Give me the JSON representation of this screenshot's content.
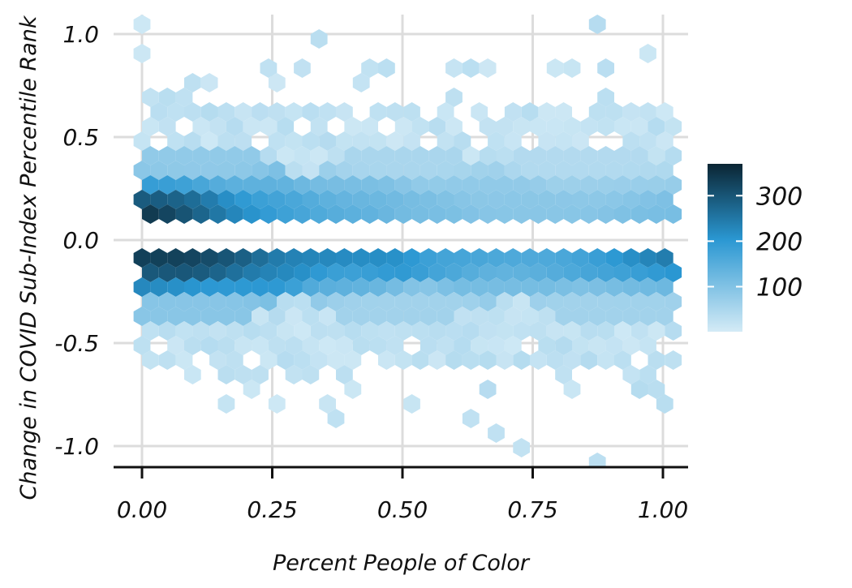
{
  "chart_data": {
    "type": "hexbin",
    "title": "",
    "xlabel": "Percent People of Color",
    "ylabel": "Change in COVID Sub-Index Percentile Rank",
    "xlim": [
      -0.05,
      1.05
    ],
    "ylim": [
      -1.1,
      1.1
    ],
    "x_ticks": [
      0.0,
      0.25,
      0.5,
      0.75,
      1.0
    ],
    "x_tick_labels": [
      "0.00",
      "0.25",
      "0.50",
      "0.75",
      "1.00"
    ],
    "y_ticks": [
      1.0,
      0.5,
      0.0,
      -0.5,
      -1.0
    ],
    "y_tick_labels": [
      "1.0",
      "0.5",
      "0.0",
      "-0.5",
      "-1.0"
    ],
    "grid": true,
    "legend": {
      "position": "right",
      "count_range": [
        1,
        370
      ],
      "ticks": [
        100,
        200,
        300
      ],
      "tick_labels": [
        "100",
        "200",
        "300"
      ]
    },
    "colors": {
      "low": "#d4ebf6",
      "mid": "#2a97d2",
      "high": "#0b2533",
      "grid": "#dcdcdc",
      "axis": "#111111"
    },
    "bins": [
      {
        "x": 0.045,
        "y": 0.16,
        "count": 370
      },
      {
        "x": 0.09,
        "y": 0.16,
        "count": 300
      },
      {
        "x": 0.14,
        "y": 0.16,
        "count": 230
      },
      {
        "x": 0.2,
        "y": 0.16,
        "count": 200
      },
      {
        "x": 0.3,
        "y": 0.16,
        "count": 170
      },
      {
        "x": 0.4,
        "y": 0.16,
        "count": 140
      },
      {
        "x": 0.55,
        "y": 0.16,
        "count": 110
      },
      {
        "x": 0.7,
        "y": 0.16,
        "count": 90
      },
      {
        "x": 0.85,
        "y": 0.16,
        "count": 90
      },
      {
        "x": 0.97,
        "y": 0.16,
        "count": 110
      },
      {
        "x": 0.05,
        "y": 0.24,
        "count": 190
      },
      {
        "x": 0.2,
        "y": 0.24,
        "count": 140
      },
      {
        "x": 0.4,
        "y": 0.24,
        "count": 110
      },
      {
        "x": 0.65,
        "y": 0.24,
        "count": 80
      },
      {
        "x": 0.9,
        "y": 0.24,
        "count": 70
      },
      {
        "x": 0.05,
        "y": -0.13,
        "count": 330
      },
      {
        "x": 0.1,
        "y": -0.13,
        "count": 340
      },
      {
        "x": 0.17,
        "y": -0.13,
        "count": 280
      },
      {
        "x": 0.3,
        "y": -0.13,
        "count": 230
      },
      {
        "x": 0.45,
        "y": -0.13,
        "count": 220
      },
      {
        "x": 0.6,
        "y": -0.13,
        "count": 170
      },
      {
        "x": 0.75,
        "y": -0.13,
        "count": 160
      },
      {
        "x": 0.9,
        "y": -0.13,
        "count": 170
      },
      {
        "x": 0.97,
        "y": -0.13,
        "count": 260
      },
      {
        "x": 0.06,
        "y": -0.19,
        "count": 230
      },
      {
        "x": 0.2,
        "y": -0.19,
        "count": 200
      },
      {
        "x": 0.4,
        "y": -0.19,
        "count": 140
      },
      {
        "x": 0.7,
        "y": -0.19,
        "count": 110
      },
      {
        "x": 0.95,
        "y": -0.19,
        "count": 120
      },
      {
        "x": 0.1,
        "y": 0.35,
        "count": 80
      },
      {
        "x": 0.5,
        "y": 0.35,
        "count": 50
      },
      {
        "x": 0.85,
        "y": 0.35,
        "count": 40
      },
      {
        "x": 0.1,
        "y": -0.3,
        "count": 90
      },
      {
        "x": 0.5,
        "y": -0.3,
        "count": 60
      },
      {
        "x": 0.9,
        "y": -0.3,
        "count": 60
      },
      {
        "x": 0.35,
        "y": 0.98,
        "count": 1
      },
      {
        "x": 0.45,
        "y": 0.98,
        "count": 1
      },
      {
        "x": 0.87,
        "y": 0.9,
        "count": 1
      },
      {
        "x": 0.36,
        "y": -0.93,
        "count": 1
      },
      {
        "x": 1.0,
        "y": -0.93,
        "count": 1
      }
    ]
  }
}
